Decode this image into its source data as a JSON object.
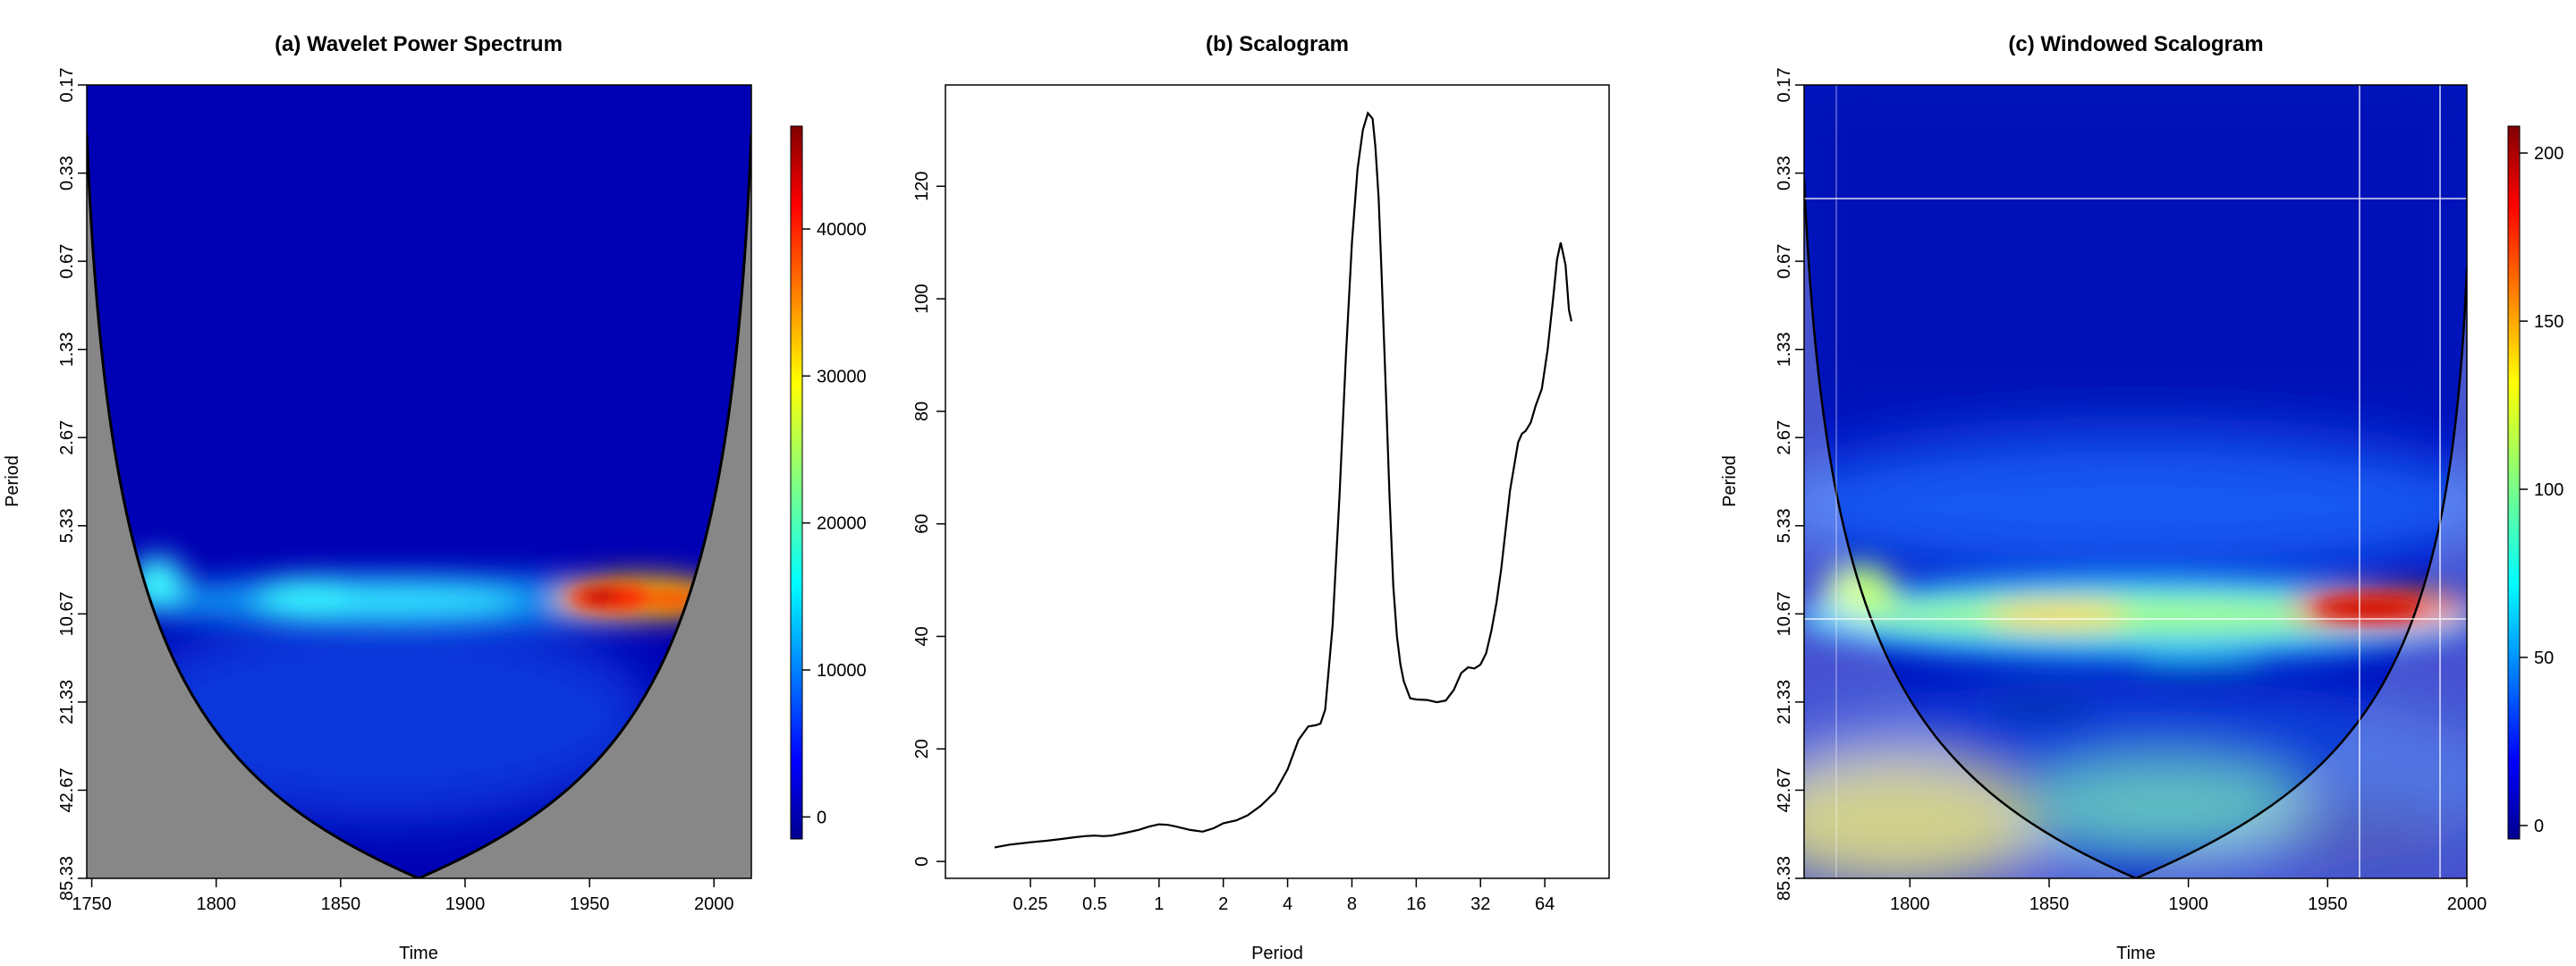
{
  "chart_data": [
    {
      "type": "heatmap",
      "title": "(a) Wavelet Power Spectrum",
      "xlabel": "Time",
      "ylabel": "Period",
      "x_ticks": [
        "1750",
        "1800",
        "1850",
        "1900",
        "1950",
        "2000"
      ],
      "x_tick_values": [
        1750,
        1800,
        1850,
        1900,
        1950,
        2000
      ],
      "xlim": [
        1748,
        2015
      ],
      "y_ticks": [
        "0.17",
        "0.33",
        "0.67",
        "1.33",
        "2.67",
        "5.33",
        "10.67",
        "21.33",
        "42.67",
        "85.33"
      ],
      "y_scale": "log2",
      "colorbar_ticks": [
        "0",
        "10000",
        "20000",
        "30000",
        "40000"
      ],
      "colorbar_tick_values": [
        0,
        10000,
        20000,
        30000,
        40000
      ],
      "colorbar_range": [
        -1500,
        47000
      ],
      "cone_of_influence": true,
      "hotspots": [
        {
          "time": 1960,
          "period": 10.67,
          "power": 45000
        },
        {
          "time": 1990,
          "period": 10.67,
          "power": 38000
        },
        {
          "time": 1780,
          "period": 9.5,
          "power": 22000
        },
        {
          "time": 1850,
          "period": 10.67,
          "power": 18000
        }
      ]
    },
    {
      "type": "line",
      "title": "(b) Scalogram",
      "xlabel": "Period",
      "ylabel": "",
      "x_scale": "log2",
      "x_ticks": [
        "0.25",
        "0.5",
        "1",
        "2",
        "4",
        "8",
        "16",
        "32",
        "64"
      ],
      "x_tick_values": [
        0.25,
        0.5,
        1,
        2,
        4,
        8,
        16,
        32,
        64
      ],
      "y_ticks": [
        "0",
        "20",
        "40",
        "60",
        "80",
        "100",
        "120"
      ],
      "y_tick_values": [
        0,
        20,
        40,
        60,
        80,
        100,
        120
      ],
      "ylim": [
        -3,
        138
      ],
      "xlim": [
        0.1,
        128
      ],
      "series": [
        {
          "x": [
            0.17,
            0.2,
            0.25,
            0.3,
            0.35,
            0.4,
            0.45,
            0.5,
            0.55,
            0.6,
            0.7,
            0.8,
            0.9,
            1.0,
            1.1,
            1.2,
            1.4,
            1.6,
            1.8,
            2.0,
            2.3,
            2.6,
            3.0,
            3.5,
            4.0,
            4.5,
            5.0,
            5.4,
            5.7,
            6.0,
            6.5,
            7.0,
            7.5,
            8.0,
            8.5,
            9.0,
            9.5,
            10.0,
            10.3,
            10.67,
            11.0,
            11.5,
            12.0,
            12.5,
            13.0,
            13.5,
            14.0,
            15.0,
            16.0,
            18.0,
            20.0,
            22.0,
            24.0,
            26.0,
            28.0,
            30.0,
            32.0,
            34.0,
            36.0,
            38.0,
            40.0,
            44.0,
            48.0,
            50.0,
            52.0,
            55.0,
            58.0,
            62.0,
            66.0,
            70.0,
            73.0,
            76.0,
            80.0,
            83.0,
            85.3
          ],
          "values": [
            2.5,
            3.0,
            3.4,
            3.7,
            4.0,
            4.3,
            4.5,
            4.6,
            4.5,
            4.6,
            5.1,
            5.6,
            6.2,
            6.6,
            6.5,
            6.2,
            5.6,
            5.3,
            5.9,
            6.8,
            7.3,
            8.2,
            9.9,
            12.4,
            16.4,
            21.6,
            24.0,
            24.2,
            24.5,
            27.0,
            42.0,
            65.0,
            90.0,
            110.0,
            123.0,
            130.0,
            133.0,
            132.0,
            127.0,
            118.0,
            105.0,
            85.0,
            65.0,
            49.0,
            40.0,
            35.0,
            32.0,
            29.0,
            28.8,
            28.7,
            28.3,
            28.6,
            30.5,
            33.5,
            34.5,
            34.3,
            35.0,
            37.0,
            41.0,
            46.0,
            52.0,
            66.0,
            74.5,
            76.0,
            76.5,
            78.0,
            81.0,
            84.0,
            91.0,
            100.0,
            107.0,
            110.0,
            106.0,
            98.0,
            96.0
          ]
        }
      ]
    },
    {
      "type": "heatmap",
      "title": "(c) Windowed Scalogram",
      "xlabel": "Time",
      "ylabel": "Period",
      "x_ticks": [
        "1800",
        "1850",
        "1900",
        "1950",
        "2000"
      ],
      "x_tick_values": [
        1800,
        1850,
        1900,
        1950,
        2000
      ],
      "xlim": [
        1762,
        2000
      ],
      "y_ticks": [
        "0.17",
        "0.33",
        "0.67",
        "1.33",
        "2.67",
        "5.33",
        "10.67",
        "21.33",
        "42.67",
        "85.33"
      ],
      "y_scale": "log2",
      "colorbar_ticks": [
        "0",
        "50",
        "100",
        "150",
        "200"
      ],
      "colorbar_tick_values": [
        0,
        50,
        100,
        150,
        200
      ],
      "colorbar_range": [
        -4,
        208
      ],
      "cone_of_influence": true,
      "reference_lines": {
        "horizontal_periods": [
          0.4,
          10.67
        ],
        "vertical_times": [
          1772,
          1961,
          1990
        ]
      },
      "hotspots": [
        {
          "time": 1965,
          "period": 10.67,
          "power": 190
        },
        {
          "time": 1870,
          "period": 10.67,
          "power": 150
        },
        {
          "time": 1780,
          "period": 9.5,
          "power": 80
        },
        {
          "time": 1800,
          "period": 60,
          "power": 60
        }
      ]
    }
  ]
}
